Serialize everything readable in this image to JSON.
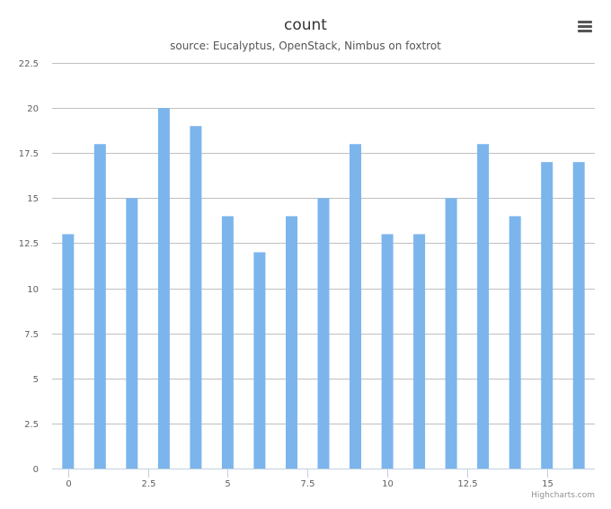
{
  "chart_data": {
    "type": "bar",
    "title": "count",
    "subtitle": "source: Eucalyptus, OpenStack, Nimbus on foxtrot",
    "xlabel": "",
    "ylabel": "",
    "x": [
      0,
      1,
      2,
      3,
      4,
      5,
      6,
      7,
      8,
      9,
      10,
      11,
      12,
      13,
      14,
      15,
      16
    ],
    "values": [
      13,
      18,
      15,
      20,
      19,
      14,
      12,
      14,
      15,
      18,
      13,
      13,
      15,
      18,
      14,
      17,
      17
    ],
    "xlim": [
      -0.5,
      16.5
    ],
    "ylim": [
      0,
      22.5
    ],
    "x_ticks": [
      0,
      2.5,
      5,
      7.5,
      10,
      12.5,
      15
    ],
    "x_tick_labels": [
      "0",
      "2.5",
      "5",
      "7.5",
      "10",
      "12.5",
      "15"
    ],
    "y_ticks": [
      0,
      2.5,
      5,
      7.5,
      10,
      12.5,
      15,
      17.5,
      20,
      22.5
    ],
    "y_tick_labels": [
      "0",
      "2.5",
      "5",
      "7.5",
      "10",
      "12.5",
      "15",
      "17.5",
      "20",
      "22.5"
    ],
    "grid": true,
    "legend": "none",
    "bar_color": "#7cb5ec",
    "grid_color": "#c0c0c0"
  },
  "credit": "Highcharts.com",
  "menu": {
    "icon": "hamburger-menu-icon"
  }
}
